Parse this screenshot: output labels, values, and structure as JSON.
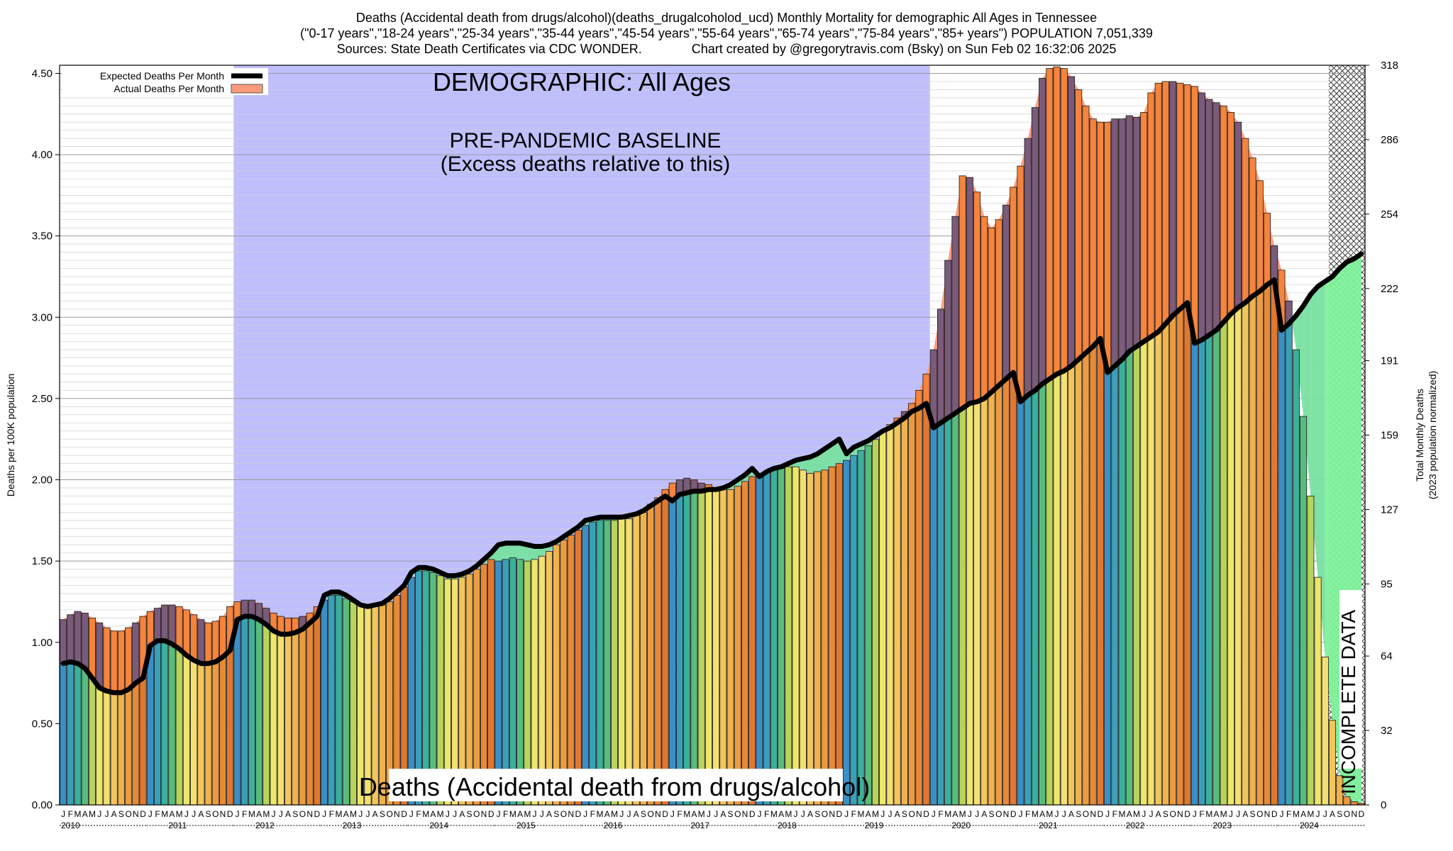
{
  "header": {
    "title_line1": "Deaths (Accidental death from drugs/alcohol)(deaths_drugalcoholod_ucd) Monthly Mortality for demographic All Ages in Tennessee",
    "title_line2": "(\"0-17 years\",\"18-24 years\",\"25-34 years\",\"35-44 years\",\"45-54 years\",\"55-64 years\",\"65-74 years\",\"75-84 years\",\"85+ years\") POPULATION 7,051,339",
    "sources": "Sources: State Death Certificates via CDC WONDER.",
    "credit": "Chart created by @gregorytravis.com (Bsky) on Sun Feb 02 16:32:06 2025"
  },
  "colors": {
    "baseline_region": "#bfbffe",
    "excess_orange": "#f5843c",
    "excess_purple": "#7a5b7b",
    "excess_fill": "#fb9a7a",
    "deficit_green": "#78e0a0",
    "incomplete_green": "#7ef29a",
    "expected_line": "#000000",
    "month_palette": [
      "#3a8fc4",
      "#3aa0b8",
      "#3bb09a",
      "#58bd7c",
      "#b8d45a",
      "#eee66a",
      "#f4e070",
      "#f2c65a",
      "#f0b24c",
      "#ec9c40",
      "#e68a38",
      "#e07830"
    ]
  },
  "chart_data": {
    "type": "bar",
    "title": "Deaths (Accidental death from drugs/alcohol)(deaths_drugalcoholod_ucd) Monthly Mortality for demographic All Ages in Tennessee",
    "ylabel_left": "Deaths per 100K population",
    "ylabel_right_line1": "Total Monthly Deaths",
    "ylabel_right_line2": "(2023 population normalized)",
    "ylim": [
      0,
      4.55
    ],
    "y_ticks": [
      "0.00",
      "0.50",
      "1.00",
      "1.50",
      "2.00",
      "2.50",
      "3.00",
      "3.50",
      "4.00",
      "4.50"
    ],
    "right_ticks": [
      0,
      32,
      64,
      95,
      127,
      159,
      191,
      222,
      254,
      286,
      318
    ],
    "legend": {
      "placement": "top-left",
      "expected_label": "Expected Deaths Per Month",
      "actual_label": "Actual Deaths Per Month"
    },
    "annotations": {
      "demographic": "DEMOGRAPHIC: All Ages",
      "baseline_line1": "PRE-PANDEMIC BASELINE",
      "baseline_line2": "(Excess deaths relative to this)",
      "bottom_label": "Deaths (Accidental death from drugs/alcohol)",
      "incomplete": "INCOMPLETE DATA"
    },
    "baseline_period": [
      "2012-01",
      "2019-12"
    ],
    "incomplete_period": [
      "2024-08",
      "2024-12"
    ],
    "month_letters": [
      "J",
      "F",
      "M",
      "A",
      "M",
      "J",
      "J",
      "A",
      "S",
      "O",
      "N",
      "D"
    ],
    "years": [
      "2010",
      "2011",
      "2012",
      "2013",
      "2014",
      "2015",
      "2016",
      "2017",
      "2018",
      "2019",
      "2020",
      "2021",
      "2022",
      "2023",
      "2024"
    ],
    "series": [
      {
        "name": "Actual Deaths Per Month",
        "start": "2010-01",
        "values": [
          1.14,
          1.17,
          1.19,
          1.18,
          1.15,
          1.12,
          1.09,
          1.07,
          1.07,
          1.09,
          1.12,
          1.16,
          1.19,
          1.21,
          1.23,
          1.23,
          1.22,
          1.2,
          1.17,
          1.14,
          1.12,
          1.13,
          1.16,
          1.22,
          1.25,
          1.26,
          1.26,
          1.24,
          1.21,
          1.18,
          1.16,
          1.15,
          1.15,
          1.16,
          1.18,
          1.22,
          1.26,
          1.29,
          1.29,
          1.27,
          1.25,
          1.23,
          1.22,
          1.22,
          1.23,
          1.25,
          1.29,
          1.34,
          1.4,
          1.44,
          1.44,
          1.43,
          1.41,
          1.39,
          1.39,
          1.4,
          1.42,
          1.45,
          1.48,
          1.51,
          1.5,
          1.51,
          1.52,
          1.51,
          1.5,
          1.51,
          1.53,
          1.56,
          1.6,
          1.63,
          1.66,
          1.69,
          1.72,
          1.74,
          1.75,
          1.75,
          1.75,
          1.76,
          1.76,
          1.78,
          1.8,
          1.85,
          1.89,
          1.94,
          1.98,
          2.0,
          2.01,
          2.0,
          1.98,
          1.97,
          1.95,
          1.94,
          1.94,
          1.96,
          1.99,
          2.02,
          2.04,
          2.05,
          2.06,
          2.07,
          2.08,
          2.08,
          2.06,
          2.04,
          2.05,
          2.06,
          2.08,
          2.1,
          2.12,
          2.15,
          2.18,
          2.21,
          2.25,
          2.3,
          2.34,
          2.38,
          2.42,
          2.47,
          2.55,
          2.65,
          2.8,
          3.05,
          3.35,
          3.62,
          3.87,
          3.86,
          3.77,
          3.62,
          3.55,
          3.6,
          3.69,
          3.8,
          3.93,
          4.1,
          4.29,
          4.47,
          4.53,
          4.54,
          4.53,
          4.48,
          4.4,
          4.3,
          4.22,
          4.2,
          4.2,
          4.22,
          4.22,
          4.24,
          4.23,
          4.26,
          4.38,
          4.44,
          4.45,
          4.45,
          4.44,
          4.43,
          4.42,
          4.38,
          4.34,
          4.32,
          4.3,
          4.26,
          4.2,
          4.1,
          3.98,
          3.84,
          3.64,
          3.44,
          3.29,
          3.1,
          2.8,
          2.39,
          1.9,
          1.4,
          0.91,
          0.52,
          0.18,
          0.05,
          0.02,
          0.01
        ]
      },
      {
        "name": "Expected Deaths Per Month",
        "start": "2010-01",
        "values": [
          0.87,
          0.88,
          0.87,
          0.84,
          0.78,
          0.72,
          0.7,
          0.69,
          0.69,
          0.71,
          0.75,
          0.78,
          0.98,
          1.01,
          1.01,
          0.99,
          0.96,
          0.92,
          0.89,
          0.87,
          0.87,
          0.88,
          0.91,
          0.95,
          1.14,
          1.16,
          1.16,
          1.14,
          1.11,
          1.07,
          1.05,
          1.05,
          1.06,
          1.08,
          1.12,
          1.16,
          1.29,
          1.31,
          1.31,
          1.29,
          1.26,
          1.23,
          1.22,
          1.23,
          1.24,
          1.27,
          1.31,
          1.35,
          1.43,
          1.46,
          1.46,
          1.45,
          1.43,
          1.41,
          1.41,
          1.42,
          1.44,
          1.47,
          1.51,
          1.55,
          1.6,
          1.61,
          1.61,
          1.61,
          1.6,
          1.59,
          1.59,
          1.6,
          1.62,
          1.65,
          1.68,
          1.71,
          1.75,
          1.76,
          1.77,
          1.77,
          1.77,
          1.77,
          1.78,
          1.79,
          1.81,
          1.84,
          1.87,
          1.9,
          1.87,
          1.91,
          1.92,
          1.93,
          1.93,
          1.94,
          1.94,
          1.95,
          1.97,
          2.0,
          2.03,
          2.07,
          2.02,
          2.05,
          2.07,
          2.08,
          2.1,
          2.12,
          2.13,
          2.14,
          2.16,
          2.19,
          2.22,
          2.25,
          2.16,
          2.2,
          2.22,
          2.24,
          2.27,
          2.3,
          2.32,
          2.35,
          2.38,
          2.42,
          2.44,
          2.47,
          2.32,
          2.35,
          2.38,
          2.41,
          2.44,
          2.47,
          2.48,
          2.5,
          2.54,
          2.58,
          2.62,
          2.66,
          2.48,
          2.52,
          2.55,
          2.59,
          2.62,
          2.65,
          2.67,
          2.7,
          2.74,
          2.78,
          2.82,
          2.87,
          2.66,
          2.7,
          2.74,
          2.79,
          2.82,
          2.85,
          2.88,
          2.91,
          2.96,
          3.01,
          3.05,
          3.09,
          2.84,
          2.86,
          2.89,
          2.92,
          2.97,
          3.02,
          3.06,
          3.09,
          3.13,
          3.16,
          3.2,
          3.23,
          2.92,
          2.96,
          3.01,
          3.07,
          3.14,
          3.19,
          3.22,
          3.25,
          3.3,
          3.34,
          3.36,
          3.39
        ]
      }
    ]
  }
}
